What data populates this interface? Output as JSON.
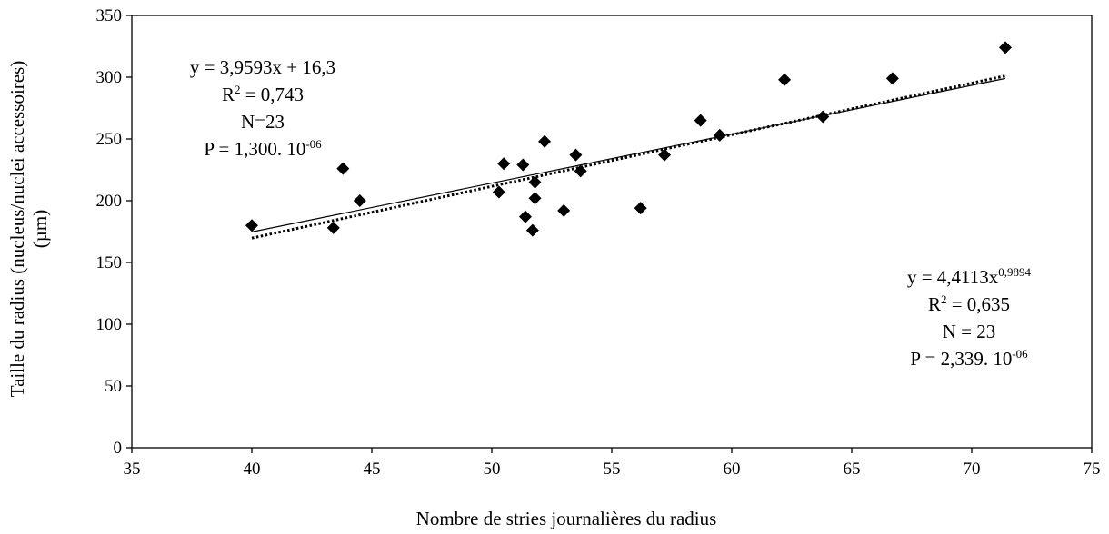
{
  "chart_data": {
    "type": "scatter",
    "xlabel": "Nombre de stries journalières du radius",
    "ylabel_line1": "Taille du radius (nucleus/nuclei accessoires)",
    "ylabel_line2": "(µm)",
    "xlim": [
      35,
      75
    ],
    "ylim": [
      0,
      350
    ],
    "x_ticks": [
      35,
      40,
      45,
      50,
      55,
      60,
      65,
      70,
      75
    ],
    "y_ticks": [
      0,
      50,
      100,
      150,
      200,
      250,
      300,
      350
    ],
    "grid": false,
    "legend": "none",
    "marker": "diamond",
    "marker_color": "#000000",
    "points": [
      {
        "x": 40.0,
        "y": 180
      },
      {
        "x": 43.4,
        "y": 178
      },
      {
        "x": 43.8,
        "y": 226
      },
      {
        "x": 44.5,
        "y": 200
      },
      {
        "x": 50.3,
        "y": 207
      },
      {
        "x": 50.5,
        "y": 230
      },
      {
        "x": 51.3,
        "y": 229
      },
      {
        "x": 51.4,
        "y": 187
      },
      {
        "x": 51.7,
        "y": 176
      },
      {
        "x": 51.8,
        "y": 215
      },
      {
        "x": 51.8,
        "y": 202
      },
      {
        "x": 52.2,
        "y": 248
      },
      {
        "x": 53.0,
        "y": 192
      },
      {
        "x": 53.5,
        "y": 237
      },
      {
        "x": 53.7,
        "y": 224
      },
      {
        "x": 56.2,
        "y": 194
      },
      {
        "x": 57.2,
        "y": 237
      },
      {
        "x": 58.7,
        "y": 265
      },
      {
        "x": 59.5,
        "y": 253
      },
      {
        "x": 62.2,
        "y": 298
      },
      {
        "x": 63.8,
        "y": 268
      },
      {
        "x": 66.7,
        "y": 299
      },
      {
        "x": 71.4,
        "y": 324
      }
    ],
    "trendlines": [
      {
        "kind": "linear",
        "style": "solid",
        "a": 3.9593,
        "b": 16.3,
        "x_range": [
          40.0,
          71.4
        ]
      },
      {
        "kind": "power",
        "style": "dotted",
        "a": 4.4113,
        "b": 0.9894,
        "x_range": [
          40.0,
          71.4
        ]
      }
    ],
    "annotations": {
      "linear": {
        "eq": "y = 3,9593x + 16,3",
        "r2_prefix": "R",
        "r2_exp": "2",
        "r2_value": " = 0,743",
        "n": "N=23",
        "p_base": "P = 1,300. 10",
        "p_exp": "-06"
      },
      "power": {
        "eq_base": "y = 4,4113x",
        "eq_exp": "0,9894",
        "r2_prefix": "R",
        "r2_exp": "2",
        "r2_value": " = 0,635",
        "n": "N = 23",
        "p_base": "P = 2,339. 10",
        "p_exp": "-06"
      }
    }
  }
}
